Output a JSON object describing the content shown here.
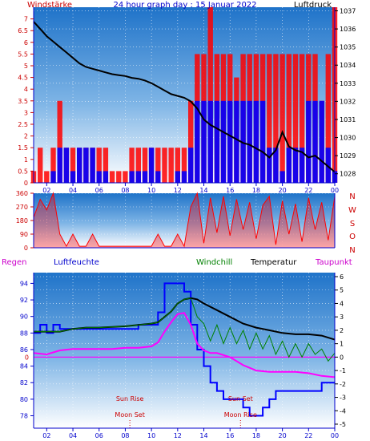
{
  "chart_data": [
    {
      "type": "line",
      "title": "24 hour graph day : 15 Januar 2022",
      "left_label": "Windstärke",
      "right_label": "Luftdruck",
      "left_ticks": [
        "0",
        "0.5",
        "1",
        "1.5",
        "2",
        "2.5",
        "3",
        "3.5",
        "4",
        "4.5",
        "5",
        "5.5",
        "6",
        "6.5",
        "7"
      ],
      "right_ticks": [
        "1028",
        "1029",
        "1030",
        "1031",
        "1032",
        "1033",
        "1034",
        "1035",
        "1036",
        "1037"
      ],
      "x_ticks": [
        "02",
        "04",
        "06",
        "08",
        "10",
        "12",
        "14",
        "16",
        "18",
        "20",
        "22",
        "00"
      ],
      "ylim_left": [
        0,
        7.5
      ],
      "ylim_right": [
        1027.5,
        1037.2
      ],
      "xlim": [
        1,
        24
      ],
      "grid": true,
      "series": [
        {
          "color": "#000000",
          "axis": "right",
          "x": [
            1,
            1.5,
            2,
            2.5,
            3,
            3.5,
            4,
            4.5,
            5,
            5.5,
            6,
            6.5,
            7,
            7.5,
            8,
            8.5,
            9,
            9.5,
            10,
            10.5,
            11,
            11.5,
            12,
            12.5,
            13,
            13.5,
            14,
            14.5,
            15,
            15.5,
            16,
            16.5,
            17,
            17.5,
            18,
            18.5,
            19,
            19.5,
            20,
            20.5,
            21,
            21.5,
            22,
            22.5,
            23,
            23.5,
            24
          ],
          "values": [
            1036.4,
            1036.0,
            1035.6,
            1035.3,
            1035.0,
            1034.7,
            1034.4,
            1034.1,
            1033.9,
            1033.8,
            1033.7,
            1033.6,
            1033.5,
            1033.45,
            1033.4,
            1033.3,
            1033.25,
            1033.15,
            1033.0,
            1032.8,
            1032.6,
            1032.4,
            1032.3,
            1032.2,
            1032.0,
            1031.6,
            1031.0,
            1030.7,
            1030.5,
            1030.3,
            1030.1,
            1029.9,
            1029.7,
            1029.6,
            1029.4,
            1029.2,
            1028.9,
            1029.3,
            1030.3,
            1029.5,
            1029.3,
            1029.2,
            1028.9,
            1029.0,
            1028.7,
            1028.4,
            1028.1
          ]
        },
        {
          "color": "#ff0000",
          "axis": "left",
          "type": "bar",
          "x": [
            1,
            1.5,
            2,
            2.5,
            3,
            3.5,
            4,
            4.5,
            5,
            5.5,
            6,
            6.5,
            7,
            7.5,
            8,
            8.5,
            9,
            9.5,
            10,
            10.5,
            11,
            11.5,
            12,
            12.5,
            13,
            13.5,
            14,
            14.5,
            15,
            15.5,
            16,
            16.5,
            17,
            17.5,
            18,
            18.5,
            19,
            19.5,
            20,
            20.5,
            21,
            21.5,
            22,
            22.5,
            23,
            23.5,
            24
          ],
          "values": [
            0.5,
            1.5,
            0.5,
            1.5,
            3.5,
            1.5,
            1.5,
            1.5,
            1.5,
            1.5,
            1.5,
            1.5,
            0.5,
            0.5,
            0.5,
            1.5,
            1.5,
            1.5,
            1.5,
            1.5,
            1.5,
            1.5,
            1.5,
            1.5,
            3.5,
            5.5,
            5.5,
            7.5,
            5.5,
            5.5,
            5.5,
            4.5,
            5.5,
            5.5,
            5.5,
            5.5,
            5.5,
            5.5,
            5.5,
            5.5,
            5.5,
            5.5,
            5.5,
            5.5,
            3.5,
            5.5,
            7.5
          ]
        },
        {
          "color": "#0000ff",
          "axis": "left",
          "type": "bar",
          "x": [
            1,
            1.5,
            2,
            2.5,
            3,
            3.5,
            4,
            4.5,
            5,
            5.5,
            6,
            6.5,
            7,
            7.5,
            8,
            8.5,
            9,
            9.5,
            10,
            10.5,
            11,
            11.5,
            12,
            12.5,
            13,
            13.5,
            14,
            14.5,
            15,
            15.5,
            16,
            16.5,
            17,
            17.5,
            18,
            18.5,
            19,
            19.5,
            20,
            20.5,
            21,
            21.5,
            22,
            22.5,
            23,
            23.5,
            24
          ],
          "values": [
            0,
            0,
            0,
            0.5,
            1.5,
            1.5,
            0.5,
            1.5,
            1.5,
            1.5,
            0.5,
            0.5,
            0,
            0,
            0,
            0.5,
            0.5,
            0.5,
            1.5,
            0.5,
            0,
            0,
            0.5,
            0.5,
            1.5,
            3.5,
            3.5,
            3.5,
            3.5,
            3.5,
            3.5,
            3.5,
            3.5,
            3.5,
            3.5,
            3.5,
            1.5,
            1.5,
            0.5,
            1.5,
            1.5,
            1.5,
            3.5,
            3.5,
            3.5,
            1.5,
            0.5
          ]
        }
      ]
    },
    {
      "type": "line",
      "left_ticks": [
        "0",
        "90",
        "180",
        "270",
        "360"
      ],
      "right_labels": [
        "N",
        "W",
        "S",
        "O",
        "N"
      ],
      "ylim": [
        0,
        360
      ],
      "xlim": [
        1,
        24
      ],
      "grid": true,
      "series": [
        {
          "color": "#ff0000",
          "x": [
            1,
            1.5,
            2,
            2.5,
            3,
            3.5,
            4,
            4.5,
            5,
            5.5,
            6,
            6.5,
            7,
            7.5,
            8,
            8.5,
            9,
            9.5,
            10,
            10.5,
            11,
            11.5,
            12,
            12.5,
            13,
            13.5,
            14,
            14.5,
            15,
            15.5,
            16,
            16.5,
            17,
            17.5,
            18,
            18.5,
            19,
            19.5,
            20,
            20.5,
            21,
            21.5,
            22,
            22.5,
            23,
            23.5,
            24
          ],
          "values": [
            200,
            320,
            250,
            360,
            90,
            10,
            90,
            10,
            10,
            90,
            10,
            10,
            10,
            10,
            10,
            10,
            10,
            10,
            10,
            90,
            10,
            10,
            90,
            10,
            270,
            360,
            30,
            330,
            100,
            340,
            80,
            320,
            120,
            300,
            60,
            280,
            340,
            20,
            310,
            90,
            290,
            40,
            330,
            120,
            300,
            50,
            340
          ]
        }
      ]
    },
    {
      "type": "line",
      "left_title": "Regen",
      "humidity_title": "Luftfeuchte",
      "windchill_title": "Windchill",
      "temp_title": "Temperatur",
      "dew_title": "Taupunkt",
      "left_ticks": [
        "78",
        "80",
        "82",
        "84",
        "86",
        "88",
        "90",
        "92",
        "94"
      ],
      "right_ticks": [
        "-5",
        "-4",
        "-3",
        "-2",
        "-1",
        "0",
        "1",
        "2",
        "3",
        "4",
        "5",
        "6"
      ],
      "zero_label": "0",
      "x_ticks": [
        "02",
        "04",
        "06",
        "08",
        "10",
        "12",
        "14",
        "16",
        "18",
        "20",
        "22",
        "00"
      ],
      "ylim_left": [
        76.5,
        95.3
      ],
      "ylim_right": [
        -5.3,
        6.3
      ],
      "xlim": [
        1,
        24
      ],
      "grid": true,
      "events": [
        {
          "label": "Sun Rise",
          "x": 8.35,
          "row": "upper"
        },
        {
          "label": "Moon Set",
          "x": 8.35,
          "row": "lower"
        },
        {
          "label": "Moon Rise",
          "x": 16.8,
          "row": "lower"
        },
        {
          "label": "Sun Set",
          "x": 16.8,
          "row": "upper"
        }
      ],
      "series": [
        {
          "name": "Luftfeuchte",
          "color": "#0000ff",
          "axis": "left",
          "step": true,
          "x": [
            1,
            1.5,
            2,
            2.5,
            3,
            8.5,
            9,
            10.5,
            11,
            11.5,
            12,
            12.5,
            13,
            13.5,
            14,
            14.5,
            15,
            15.5,
            16,
            16.5,
            17,
            17.5,
            18,
            18.5,
            19,
            19.5,
            20,
            20.5,
            21,
            21.5,
            22,
            23,
            24
          ],
          "values": [
            88,
            89,
            88,
            89,
            88.5,
            88.5,
            89,
            90.5,
            94,
            94,
            94,
            93,
            89,
            86,
            84,
            82,
            81,
            80,
            80,
            80,
            79,
            78,
            78,
            79,
            80,
            81,
            81,
            81,
            81,
            81,
            81,
            82,
            82
          ]
        },
        {
          "name": "Temperatur",
          "color": "#000000",
          "axis": "right",
          "x": [
            1,
            2,
            3,
            4,
            5,
            6,
            7,
            8,
            9,
            10,
            10.5,
            11,
            11.5,
            12,
            12.5,
            13,
            13.5,
            14,
            15,
            16,
            17,
            18,
            19,
            20,
            21,
            22,
            23,
            24
          ],
          "values": [
            1.9,
            1.9,
            1.9,
            2.1,
            2.2,
            2.2,
            2.25,
            2.3,
            2.4,
            2.5,
            2.6,
            3.0,
            3.4,
            4.0,
            4.3,
            4.4,
            4.3,
            4.0,
            3.5,
            3.0,
            2.5,
            2.2,
            2.0,
            1.8,
            1.7,
            1.7,
            1.6,
            1.3
          ]
        },
        {
          "name": "Windchill",
          "color": "#008000",
          "axis": "right",
          "x": [
            1,
            2,
            3,
            4,
            5,
            6,
            7,
            8,
            9,
            10,
            10.5,
            11,
            11.5,
            12,
            12.5,
            13,
            13.5,
            14,
            14.5,
            15,
            15.5,
            16,
            16.5,
            17,
            17.5,
            18,
            18.5,
            19,
            19.5,
            20,
            20.5,
            21,
            21.5,
            22,
            22.5,
            23,
            23.5,
            24
          ],
          "values": [
            1.9,
            1.9,
            1.9,
            2.1,
            2.2,
            2.2,
            2.25,
            2.3,
            2.4,
            2.5,
            2.6,
            3.0,
            3.4,
            4.0,
            4.3,
            4.4,
            3.0,
            2.5,
            1.2,
            2.4,
            1.0,
            2.2,
            1.0,
            2.0,
            0.6,
            1.8,
            0.6,
            1.6,
            0.2,
            1.2,
            0.0,
            1.0,
            0.0,
            1.0,
            0.2,
            0.6,
            -0.3,
            0.3
          ]
        },
        {
          "name": "Taupunkt",
          "color": "#ff00ff",
          "axis": "right",
          "x": [
            1,
            2,
            3,
            4,
            5,
            6,
            7,
            8,
            9,
            10,
            10.5,
            11,
            11.5,
            12,
            12.5,
            13,
            13.5,
            14,
            14.5,
            15,
            16,
            17,
            18,
            19,
            20,
            21,
            22,
            23,
            24
          ],
          "values": [
            0.3,
            0.2,
            0.5,
            0.6,
            0.6,
            0.6,
            0.6,
            0.7,
            0.7,
            0.8,
            1.1,
            1.9,
            2.6,
            3.2,
            3.3,
            2.4,
            1.0,
            0.5,
            0.3,
            0.3,
            0.0,
            -0.6,
            -1.0,
            -1.1,
            -1.1,
            -1.1,
            -1.2,
            -1.4,
            -1.5
          ]
        }
      ]
    }
  ]
}
